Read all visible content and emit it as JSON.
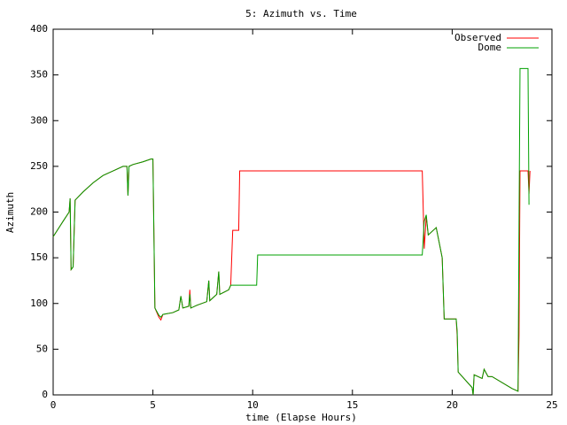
{
  "chart_data": {
    "type": "line",
    "title": "5: Azimuth vs. Time",
    "x_label": "time (Elapse Hours)",
    "y_label": "Azimuth",
    "xlim": [
      0,
      25
    ],
    "xticks": [
      0,
      5,
      10,
      15,
      20,
      25
    ],
    "ylim": [
      0,
      400
    ],
    "yticks": [
      0,
      50,
      100,
      150,
      200,
      250,
      300,
      350,
      400
    ],
    "legend": "top-right",
    "series": [
      {
        "name": "Observed",
        "color": "#ff0000",
        "x": [
          0,
          0.5,
          0.8,
          0.85,
          0.9,
          1.0,
          1.1,
          1.5,
          2,
          2.5,
          3,
          3.5,
          3.7,
          3.75,
          3.8,
          4,
          4.5,
          4.9,
          5.0,
          5.1,
          5.3,
          5.4,
          5.5,
          6,
          6.3,
          6.4,
          6.5,
          6.8,
          6.85,
          6.9,
          7.2,
          7.7,
          7.8,
          7.85,
          8.2,
          8.3,
          8.35,
          8.8,
          8.9,
          9.0,
          9.3,
          9.35,
          18.5,
          18.6,
          18.7,
          18.8,
          19.2,
          19.5,
          19.6,
          20.2,
          20.25,
          20.3,
          21.0,
          21.05,
          21.1,
          21.5,
          21.6,
          21.8,
          22,
          23.0,
          23.3,
          23.35,
          23.4,
          23.8,
          23.85,
          23.9
        ],
        "values": [
          173,
          190,
          200,
          215,
          137,
          140,
          213,
          222,
          232,
          240,
          245,
          250,
          250,
          218,
          250,
          252,
          255,
          258,
          258,
          95,
          85,
          82,
          88,
          90,
          93,
          108,
          95,
          97,
          115,
          95,
          98,
          102,
          125,
          103,
          110,
          135,
          110,
          115,
          120,
          180,
          180,
          245,
          245,
          160,
          195,
          175,
          183,
          150,
          83,
          83,
          65,
          25,
          8,
          0,
          22,
          18,
          28,
          20,
          20,
          7,
          4,
          65,
          245,
          245,
          220,
          245
        ]
      },
      {
        "name": "Dome",
        "color": "#00a000",
        "x": [
          0,
          0.5,
          0.8,
          0.85,
          0.9,
          1.0,
          1.1,
          1.5,
          2,
          2.5,
          3,
          3.5,
          3.7,
          3.75,
          3.8,
          4,
          4.5,
          4.9,
          5.0,
          5.1,
          5.3,
          5.4,
          5.5,
          6,
          6.3,
          6.4,
          6.5,
          6.8,
          6.85,
          6.9,
          7.2,
          7.7,
          7.8,
          7.85,
          8.2,
          8.3,
          8.35,
          8.8,
          8.9,
          9.0,
          10.2,
          10.25,
          18.5,
          18.6,
          18.7,
          18.8,
          19.2,
          19.5,
          19.6,
          20.2,
          20.25,
          20.3,
          21.0,
          21.05,
          21.1,
          21.5,
          21.6,
          21.8,
          22,
          23.0,
          23.3,
          23.35,
          23.4,
          23.8,
          23.85
        ],
        "values": [
          173,
          190,
          200,
          215,
          137,
          140,
          213,
          222,
          232,
          240,
          245,
          250,
          250,
          218,
          250,
          252,
          255,
          258,
          258,
          95,
          87,
          85,
          88,
          90,
          93,
          108,
          95,
          97,
          110,
          95,
          98,
          102,
          125,
          103,
          110,
          135,
          110,
          115,
          120,
          120,
          120,
          153,
          153,
          190,
          197,
          175,
          183,
          150,
          83,
          83,
          70,
          25,
          8,
          0,
          22,
          18,
          28,
          20,
          20,
          7,
          4,
          185,
          357,
          357,
          208
        ]
      }
    ]
  }
}
